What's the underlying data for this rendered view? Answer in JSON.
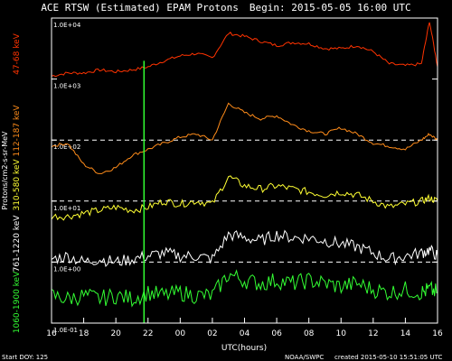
{
  "header": {
    "title": "ACE RTSW (Estimated) EPAM Protons",
    "begin": "Begin: 2015-05-05 16:00 UTC"
  },
  "footer": {
    "start_doy": "Start DOY: 125",
    "source": "NOAA/SWPC",
    "created": "created 2015-05-10 15:51:05 UTC"
  },
  "chart_data": {
    "type": "line",
    "xlabel": "UTC(hours)",
    "ylabel": "Protons/cm2-s-sr-MeV",
    "x_ticks": [
      "16",
      "18",
      "20",
      "22",
      "00",
      "02",
      "04",
      "06",
      "08",
      "10",
      "12",
      "14",
      "16"
    ],
    "y_ticks": [
      "1.0E+04",
      "1.0E+03",
      "1.0E+02",
      "1.0E+01",
      "1.0E+00",
      "1.0E-01"
    ],
    "ylim": [
      -1,
      4
    ],
    "log_scale": true,
    "x_range_hours": [
      0,
      48
    ],
    "reference_lines": [
      2,
      1,
      0
    ],
    "vertical_marker_hour": 11.5,
    "series": [
      {
        "name": "47-68 keV",
        "color": "#ff3300",
        "x": [
          0,
          2,
          4,
          6,
          8,
          10,
          12,
          14,
          16,
          18,
          20,
          22,
          24,
          26,
          28,
          30,
          32,
          34,
          36,
          38,
          40,
          42,
          44,
          46,
          47,
          48
        ],
        "y": [
          3.05,
          3.1,
          3.1,
          3.15,
          3.12,
          3.15,
          3.2,
          3.3,
          3.38,
          3.42,
          3.35,
          3.75,
          3.7,
          3.62,
          3.55,
          3.6,
          3.58,
          3.5,
          3.5,
          3.55,
          3.45,
          3.25,
          3.22,
          3.25,
          3.95,
          3.2
        ]
      },
      {
        "name": "112-187 keV",
        "color": "#ff8c1a",
        "x": [
          0,
          2,
          4,
          6,
          8,
          10,
          12,
          14,
          16,
          18,
          20,
          22,
          24,
          26,
          28,
          30,
          32,
          34,
          36,
          38,
          40,
          42,
          44,
          46,
          47,
          48
        ],
        "y": [
          1.9,
          1.95,
          1.6,
          1.45,
          1.55,
          1.75,
          1.85,
          1.95,
          2.05,
          2.1,
          2.0,
          2.6,
          2.45,
          2.35,
          2.4,
          2.25,
          2.15,
          2.1,
          2.2,
          2.1,
          1.95,
          1.9,
          1.85,
          2.0,
          2.1,
          2.0
        ]
      },
      {
        "name": "310-580 keV",
        "color": "#ffff33",
        "x": [
          0,
          2,
          4,
          6,
          8,
          10,
          12,
          14,
          16,
          18,
          20,
          22,
          24,
          26,
          28,
          30,
          32,
          34,
          36,
          38,
          40,
          42,
          44,
          46,
          47,
          48
        ],
        "y": [
          0.75,
          0.75,
          0.8,
          0.85,
          0.9,
          0.85,
          0.9,
          1.0,
          0.95,
          1.0,
          0.95,
          1.4,
          1.25,
          1.2,
          1.25,
          1.2,
          1.15,
          1.1,
          1.15,
          1.1,
          1.0,
          0.9,
          0.95,
          1.0,
          1.05,
          1.0
        ]
      },
      {
        "name": "761-1220 keV",
        "color": "#ffffff",
        "x": [
          0,
          2,
          4,
          6,
          8,
          10,
          12,
          14,
          16,
          18,
          20,
          22,
          24,
          26,
          28,
          30,
          32,
          34,
          36,
          38,
          40,
          42,
          44,
          46,
          47,
          48
        ],
        "y": [
          0.05,
          0.1,
          0.0,
          0.05,
          0.0,
          0.05,
          0.1,
          0.15,
          0.1,
          0.1,
          0.05,
          0.45,
          0.4,
          0.35,
          0.45,
          0.4,
          0.4,
          0.35,
          0.3,
          0.25,
          0.15,
          0.05,
          0.1,
          0.15,
          0.2,
          0.1
        ]
      },
      {
        "name": "1060-1900 keV",
        "color": "#33ff33",
        "x": [
          0,
          2,
          4,
          6,
          8,
          10,
          12,
          14,
          16,
          18,
          20,
          22,
          24,
          26,
          28,
          30,
          32,
          34,
          36,
          38,
          40,
          42,
          44,
          46,
          47,
          48
        ],
        "y": [
          -0.55,
          -0.6,
          -0.55,
          -0.6,
          -0.55,
          -0.6,
          -0.5,
          -0.55,
          -0.5,
          -0.55,
          -0.55,
          -0.2,
          -0.3,
          -0.35,
          -0.3,
          -0.35,
          -0.3,
          -0.35,
          -0.4,
          -0.35,
          -0.45,
          -0.5,
          -0.45,
          -0.5,
          -0.45,
          -0.5
        ]
      }
    ]
  }
}
